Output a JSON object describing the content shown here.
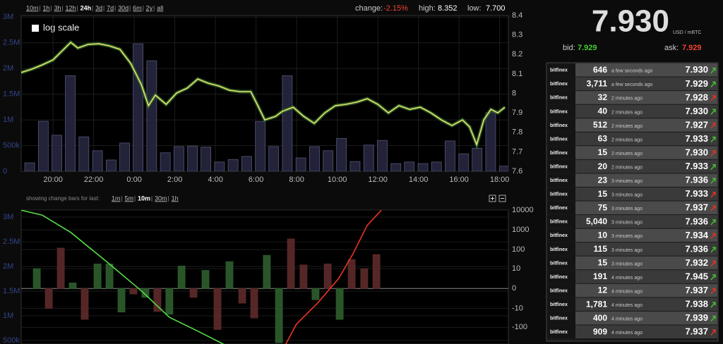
{
  "header": {
    "ranges": [
      "10m",
      "1h",
      "3h",
      "12h",
      "24h",
      "3d",
      "7d",
      "30d",
      "6m",
      "2y",
      "all"
    ],
    "change_label": "change:",
    "change": "-2.15%",
    "high_label": "high:",
    "high": "8.352",
    "low_label": "low:",
    "low": "7.700"
  },
  "chart_data": [
    {
      "type": "bar-line",
      "checkbox_label": "log scale",
      "log_scale": false,
      "grid": true,
      "xlim": [
        18.43,
        42.43
      ],
      "xticks": [
        {
          "value": 20,
          "label": "20:00"
        },
        {
          "value": 22,
          "label": "22:00"
        },
        {
          "value": 24,
          "label": "0:00"
        },
        {
          "value": 26,
          "label": "2:00"
        },
        {
          "value": 28,
          "label": "4:00"
        },
        {
          "value": 30,
          "label": "6:00"
        },
        {
          "value": 32,
          "label": "8:00"
        },
        {
          "value": 34,
          "label": "10:00"
        },
        {
          "value": 36,
          "label": "12:00"
        },
        {
          "value": 38,
          "label": "14:00"
        },
        {
          "value": 40,
          "label": "16:00"
        },
        {
          "value": 42,
          "label": "18:00"
        }
      ],
      "ylim": [
        0,
        3030000
      ],
      "yticks": [
        0,
        {
          "value": 500000,
          "label": "500k"
        },
        {
          "value": 1000000,
          "label": "1M"
        },
        {
          "value": 1500000,
          "label": "1.5M"
        },
        {
          "value": 2000000,
          "label": "2M"
        },
        {
          "value": 2500000,
          "label": "2.5M"
        },
        {
          "value": 3000000,
          "label": "3M"
        }
      ],
      "y2lim": [
        7.6,
        8.4
      ],
      "y2ticks": [
        7.6,
        7.7,
        7.8,
        7.9,
        8,
        8.1,
        8.2,
        8.3,
        8.4
      ],
      "series": [
        {
          "type": "bar",
          "color": "#26263f",
          "x": [
            18.85,
            19.52,
            20.19,
            20.85,
            21.52,
            22.19,
            22.86,
            23.53,
            24.19,
            24.86,
            25.53,
            26.2,
            26.87,
            27.53,
            28.2,
            28.87,
            29.54,
            30.21,
            30.87,
            31.54,
            32.21,
            32.88,
            33.55,
            34.21,
            34.88,
            35.55,
            36.22,
            36.89,
            37.55,
            38.22,
            38.89,
            39.56,
            40.23,
            40.89,
            41.56,
            42.23
          ],
          "values": [
            164000,
            973000,
            700000,
            1860000,
            670000,
            400000,
            220000,
            550000,
            2480000,
            2150000,
            360000,
            480000,
            490000,
            470000,
            180000,
            230000,
            290000,
            970000,
            480000,
            1860000,
            260000,
            480000,
            400000,
            640000,
            190000,
            510000,
            600000,
            150000,
            180000,
            150000,
            180000,
            590000,
            340000,
            450000,
            1140000,
            100000
          ]
        },
        {
          "type": "line",
          "axis": "y2",
          "color": "#f0e070",
          "x": [
            18.43,
            18.96,
            19.48,
            20,
            20.52,
            20.87,
            21.22,
            21.74,
            22.26,
            22.78,
            23.3,
            23.83,
            24.35,
            24.7,
            25.04,
            25.57,
            26.09,
            26.61,
            27.13,
            27.65,
            28.17,
            28.7,
            29.22,
            29.74,
            30.09,
            30.43,
            30.96,
            31.3,
            31.83,
            32.35,
            32.87,
            33.39,
            33.91,
            34.43,
            34.96,
            35.48,
            36,
            36.52,
            37.04,
            37.57,
            38.09,
            38.61,
            39.13,
            39.65,
            40.17,
            40.52,
            40.87,
            41.22,
            41.57,
            41.91,
            42.26
          ],
          "values": [
            8.107,
            8.125,
            8.147,
            8.172,
            8.226,
            8.262,
            8.233,
            8.252,
            8.255,
            8.244,
            8.226,
            8.154,
            8.045,
            7.937,
            7.991,
            7.944,
            8.002,
            8.027,
            8.074,
            8.052,
            8.038,
            8.016,
            8.009,
            8.009,
            7.937,
            7.864,
            7.882,
            7.908,
            7.929,
            7.882,
            7.846,
            7.9,
            7.937,
            7.944,
            7.955,
            7.973,
            7.944,
            7.9,
            7.937,
            7.918,
            7.929,
            7.9,
            7.864,
            7.835,
            7.864,
            7.828,
            7.737,
            7.864,
            7.918,
            7.9,
            7.929
          ]
        }
      ]
    },
    {
      "type": "bar-line",
      "subtitle": "showing change bars for last:",
      "ranges": [
        "1m",
        "5m",
        "10m",
        "30m",
        "1h"
      ],
      "grid": true,
      "xlim": [
        18.43,
        42.43
      ],
      "ylim": [
        429000,
        3143000
      ],
      "yticks": [
        {
          "value": 500000,
          "label": "500k"
        },
        {
          "value": 1000000,
          "label": "1M"
        },
        {
          "value": 1500000,
          "label": "1.5M"
        },
        {
          "value": 2000000,
          "label": "2M"
        },
        {
          "value": 2500000,
          "label": "2.5M"
        },
        {
          "value": 3000000,
          "label": "3M"
        }
      ],
      "y2scale": "symlog",
      "y2lim": [
        -700,
        10000
      ],
      "y2ticks": [
        -100,
        -10,
        0,
        10,
        100,
        1000,
        10000
      ],
      "series": [
        {
          "type": "bar",
          "axis": "y2",
          "x": [
            19.2,
            19.79,
            20.38,
            20.97,
            21.56,
            22.19,
            22.78,
            23.37,
            23.96,
            24.55,
            25.14,
            25.73,
            26.33,
            26.92,
            27.51,
            28.1,
            28.69,
            29.32,
            29.91,
            30.53,
            31.13,
            31.72,
            32.34,
            32.93,
            33.53,
            34.12,
            34.71,
            35.33,
            35.93
          ],
          "values": [
            10,
            -10,
            120,
            1,
            -39,
            18,
            18,
            -16,
            -1,
            -2,
            -15,
            -21,
            14,
            -2,
            8,
            -130,
            24,
            -5,
            -33,
            51,
            -600,
            350,
            16,
            -3,
            18,
            -39,
            31,
            10,
            56
          ],
          "colors": [
            "#2d5e2d",
            "#5e2a2a",
            "#5e2a2a",
            "#2d5e2d",
            "#5e2a2a",
            "#2d5e2d",
            "#2d5e2d",
            "#2d5e2d",
            "#5e2a2a",
            "#2d5e2d",
            "#5e2a2a",
            "#2d5e2d",
            "#2d5e2d",
            "#5e2a2a",
            "#2d5e2d",
            "#5e2a2a",
            "#2d5e2d",
            "#5e2a2a",
            "#5e2a2a",
            "#2d5e2d",
            "#2d5e2d",
            "#5e2a2a",
            "#5e2a2a",
            "#2d5e2d",
            "#5e2a2a",
            "#2d5e2d",
            "#5e2a2a",
            "#5e2a2a",
            "#5e2a2a"
          ]
        },
        {
          "type": "line",
          "color": "#55dd44",
          "x": [
            18.43,
            19.47,
            20.87,
            22.6,
            24.34,
            25.73,
            27.13,
            28.52
          ],
          "values": [
            3140000,
            3040000,
            2690000,
            2110000,
            1510000,
            970000,
            690000,
            400000
          ]
        },
        {
          "type": "line",
          "color": "#ee3322",
          "x": [
            31.47,
            31.99,
            33.04,
            34.08,
            34.78,
            35.47,
            36.17
          ],
          "values": [
            430000,
            830000,
            1260000,
            1760000,
            2260000,
            2830000,
            3140000
          ]
        }
      ]
    }
  ],
  "ticker": {
    "price": "7.930",
    "unit": "USD / mBTC",
    "bid_label": "bid:",
    "bid": "7.929",
    "ask_label": "ask:",
    "ask": "7.929"
  },
  "trades": {
    "rows": [
      {
        "exchange": "bitfinex",
        "amount": "646",
        "time": "a few seconds ago",
        "price": "7.930",
        "arrow_color": "#44bb33"
      },
      {
        "exchange": "bitfinex",
        "amount": "3,711",
        "time": "a few seconds ago",
        "price": "7.929",
        "arrow_color": "#44bb33"
      },
      {
        "exchange": "bitfinex",
        "amount": "32",
        "time": "2 minutes ago",
        "price": "7.928",
        "arrow_color": "#dd3322"
      },
      {
        "exchange": "bitfinex",
        "amount": "40",
        "time": "2 minutes ago",
        "price": "7.930",
        "arrow_color": "#44bb33"
      },
      {
        "exchange": "bitfinex",
        "amount": "512",
        "time": "2 minutes ago",
        "price": "7.927",
        "arrow_color": "#dd3322"
      },
      {
        "exchange": "bitfinex",
        "amount": "63",
        "time": "2 minutes ago",
        "price": "7.933",
        "arrow_color": "#44bb33"
      },
      {
        "exchange": "bitfinex",
        "amount": "15",
        "time": "2 minutes ago",
        "price": "7.930",
        "arrow_color": "#dd3322"
      },
      {
        "exchange": "bitfinex",
        "amount": "20",
        "time": "2 minutes ago",
        "price": "7.933",
        "arrow_color": "#44bb33"
      },
      {
        "exchange": "bitfinex",
        "amount": "23",
        "time": "3 minutes ago",
        "price": "7.936",
        "arrow_color": "#44bb33"
      },
      {
        "exchange": "bitfinex",
        "amount": "15",
        "time": "3 minutes ago",
        "price": "7.933",
        "arrow_color": "#dd3322"
      },
      {
        "exchange": "bitfinex",
        "amount": "75",
        "time": "3 minutes ago",
        "price": "7.937",
        "arrow_color": "#dd3322"
      },
      {
        "exchange": "bitfinex",
        "amount": "5,040",
        "time": "3 minutes ago",
        "price": "7.936",
        "arrow_color": "#44bb33"
      },
      {
        "exchange": "bitfinex",
        "amount": "10",
        "time": "3 minutes ago",
        "price": "7.934",
        "arrow_color": "#dd3322"
      },
      {
        "exchange": "bitfinex",
        "amount": "115",
        "time": "3 minutes ago",
        "price": "7.936",
        "arrow_color": "#44bb33"
      },
      {
        "exchange": "bitfinex",
        "amount": "15",
        "time": "3 minutes ago",
        "price": "7.932",
        "arrow_color": "#dd3322"
      },
      {
        "exchange": "bitfinex",
        "amount": "191",
        "time": "4 minutes ago",
        "price": "7.945",
        "arrow_color": "#44bb33"
      },
      {
        "exchange": "bitfinex",
        "amount": "12",
        "time": "4 minutes ago",
        "price": "7.937",
        "arrow_color": "#dd3322"
      },
      {
        "exchange": "bitfinex",
        "amount": "1,781",
        "time": "4 minutes ago",
        "price": "7.938",
        "arrow_color": "#44bb33"
      },
      {
        "exchange": "bitfinex",
        "amount": "400",
        "time": "4 minutes ago",
        "price": "7.939",
        "arrow_color": "#44bb33"
      },
      {
        "exchange": "bitfinex",
        "amount": "909",
        "time": "4 minutes ago",
        "price": "7.937",
        "arrow_color": "#dd3322"
      }
    ]
  }
}
